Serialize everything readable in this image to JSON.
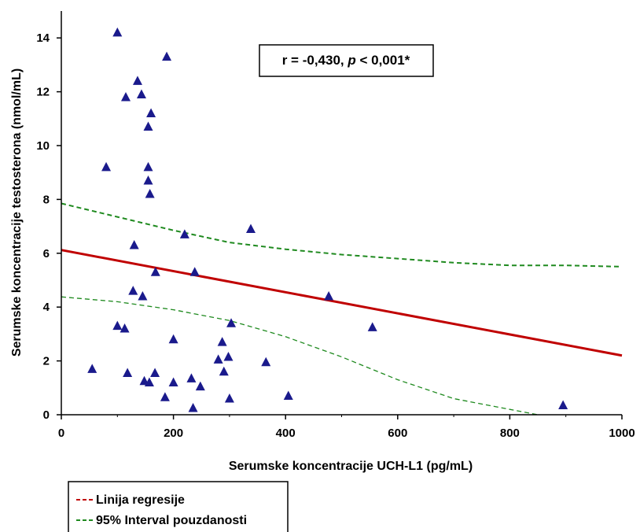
{
  "chart_data": {
    "type": "scatter",
    "xlabel": "Serumske koncentracije UCH-L1 (pg/mL)",
    "ylabel": "Serumske koncentracije testosterona (nmol/mL)",
    "xlim": [
      0,
      1000
    ],
    "ylim": [
      0,
      15
    ],
    "xticks": [
      "0",
      "200",
      "400",
      "600",
      "800",
      "1000"
    ],
    "yticks": [
      "0",
      "2",
      "4",
      "6",
      "8",
      "10",
      "12",
      "14"
    ],
    "grid": false,
    "annotation": {
      "prefix": "r = -0,430, ",
      "p_symbol": "p",
      "suffix": " < 0,001*"
    },
    "points": [
      {
        "x": 100,
        "y": 14.2
      },
      {
        "x": 188,
        "y": 13.3
      },
      {
        "x": 136,
        "y": 12.4
      },
      {
        "x": 115,
        "y": 11.8
      },
      {
        "x": 143,
        "y": 11.9
      },
      {
        "x": 160,
        "y": 11.2
      },
      {
        "x": 155,
        "y": 10.7
      },
      {
        "x": 80,
        "y": 9.2
      },
      {
        "x": 155,
        "y": 9.2
      },
      {
        "x": 155,
        "y": 8.7
      },
      {
        "x": 158,
        "y": 8.2
      },
      {
        "x": 220,
        "y": 6.7
      },
      {
        "x": 338,
        "y": 6.9
      },
      {
        "x": 130,
        "y": 6.3
      },
      {
        "x": 168,
        "y": 5.3
      },
      {
        "x": 238,
        "y": 5.3
      },
      {
        "x": 128,
        "y": 4.6
      },
      {
        "x": 145,
        "y": 4.4
      },
      {
        "x": 477,
        "y": 4.4
      },
      {
        "x": 100,
        "y": 3.3
      },
      {
        "x": 113,
        "y": 3.2
      },
      {
        "x": 555,
        "y": 3.25
      },
      {
        "x": 303,
        "y": 3.4
      },
      {
        "x": 200,
        "y": 2.8
      },
      {
        "x": 287,
        "y": 2.7
      },
      {
        "x": 298,
        "y": 2.15
      },
      {
        "x": 280,
        "y": 2.05
      },
      {
        "x": 365,
        "y": 1.95
      },
      {
        "x": 55,
        "y": 1.7
      },
      {
        "x": 118,
        "y": 1.55
      },
      {
        "x": 167,
        "y": 1.55
      },
      {
        "x": 290,
        "y": 1.6
      },
      {
        "x": 148,
        "y": 1.25
      },
      {
        "x": 157,
        "y": 1.2
      },
      {
        "x": 200,
        "y": 1.2
      },
      {
        "x": 232,
        "y": 1.35
      },
      {
        "x": 248,
        "y": 1.05
      },
      {
        "x": 185,
        "y": 0.65
      },
      {
        "x": 300,
        "y": 0.6
      },
      {
        "x": 405,
        "y": 0.7
      },
      {
        "x": 235,
        "y": 0.25
      },
      {
        "x": 895,
        "y": 0.35
      }
    ],
    "regression": {
      "name": "Linija regresije",
      "color": "#c00000",
      "x": [
        0,
        1000
      ],
      "y": [
        6.12,
        2.2
      ]
    },
    "ci_upper": {
      "name": "95% Interval pouzdanosti",
      "color": "#1f8a1f",
      "x": [
        0,
        100,
        200,
        300,
        400,
        500,
        600,
        700,
        800,
        900,
        1000
      ],
      "y": [
        7.85,
        7.35,
        6.85,
        6.4,
        6.15,
        5.95,
        5.8,
        5.65,
        5.55,
        5.55,
        5.5
      ]
    },
    "ci_lower": {
      "name": "95% Interval pouzdanosti",
      "color": "#1f8a1f",
      "x": [
        0,
        100,
        200,
        300,
        400,
        500,
        600,
        700,
        800,
        850
      ],
      "y": [
        4.38,
        4.2,
        3.9,
        3.5,
        2.9,
        2.15,
        1.3,
        0.6,
        0.2,
        0
      ]
    },
    "legend": {
      "placement": "bottom-left",
      "entries": [
        {
          "label": "Linija regresije",
          "color": "#c00000"
        },
        {
          "label": "95% Interval pouzdanosti",
          "color": "#1f8a1f"
        }
      ]
    },
    "marker_color": "#1a1a8c"
  }
}
